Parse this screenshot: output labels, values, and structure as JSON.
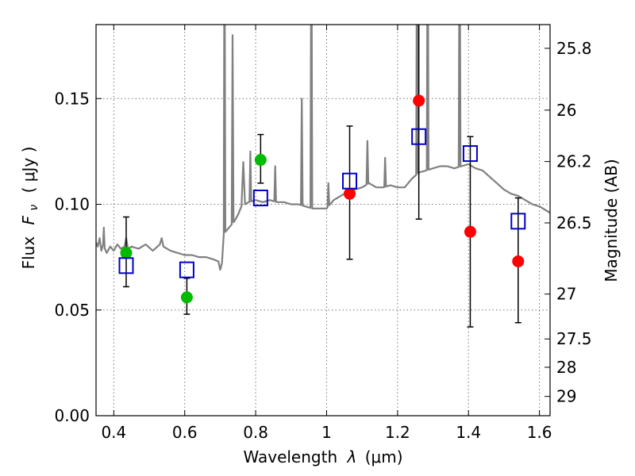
{
  "chart_data": {
    "type": "scatter",
    "title": "",
    "xlabel_text": "Wavelength",
    "xlabel_symbol": "λ",
    "xlabel_unit": "(μm)",
    "ylabel_text": "Flux",
    "ylabel_symbol": "F",
    "ylabel_symbol_sub": "ν",
    "ylabel_unit": "( μJy )",
    "y2label": "Magnitude (AB)",
    "xlim": [
      0.35,
      1.63
    ],
    "ylim": [
      0.0,
      0.185
    ],
    "grid": true,
    "x_ticks": [
      {
        "value": 0.4,
        "label": "0.4"
      },
      {
        "value": 0.6,
        "label": "0.6"
      },
      {
        "value": 0.8,
        "label": "0.8"
      },
      {
        "value": 1.0,
        "label": "1"
      },
      {
        "value": 1.2,
        "label": "1.2"
      },
      {
        "value": 1.4,
        "label": "1.4"
      },
      {
        "value": 1.6,
        "label": "1.6"
      }
    ],
    "y_ticks": [
      {
        "value": 0.0,
        "label": "0.00"
      },
      {
        "value": 0.05,
        "label": "0.05"
      },
      {
        "value": 0.1,
        "label": "0.10"
      },
      {
        "value": 0.15,
        "label": "0.15"
      }
    ],
    "y2_ticks": [
      {
        "mag": 25.8,
        "label": "25.8"
      },
      {
        "mag": 26.0,
        "label": "26"
      },
      {
        "mag": 26.2,
        "label": "26.2"
      },
      {
        "mag": 26.5,
        "label": "26.5"
      },
      {
        "mag": 27.0,
        "label": "27"
      },
      {
        "mag": 27.5,
        "label": "27.5"
      },
      {
        "mag": 28.0,
        "label": "28"
      },
      {
        "mag": 29.0,
        "label": "29"
      }
    ],
    "series": [
      {
        "marker": "filled-circle",
        "color": "#00bb00",
        "points": [
          {
            "x": 0.435,
            "y": 0.077
          },
          {
            "x": 0.606,
            "y": 0.056
          },
          {
            "x": 0.814,
            "y": 0.121
          }
        ]
      },
      {
        "marker": "filled-circle",
        "color": "#ff0000",
        "points": [
          {
            "x": 1.065,
            "y": 0.105
          },
          {
            "x": 1.26,
            "y": 0.149
          },
          {
            "x": 1.405,
            "y": 0.087
          },
          {
            "x": 1.54,
            "y": 0.073
          }
        ]
      },
      {
        "marker": "open-square",
        "color": "#0000cc",
        "points": [
          {
            "x": 0.435,
            "y": 0.071
          },
          {
            "x": 0.606,
            "y": 0.069
          },
          {
            "x": 0.814,
            "y": 0.103
          },
          {
            "x": 1.065,
            "y": 0.111
          },
          {
            "x": 1.26,
            "y": 0.132
          },
          {
            "x": 1.405,
            "y": 0.124
          },
          {
            "x": 1.54,
            "y": 0.092
          }
        ]
      }
    ],
    "error_bars": {
      "color": "#000000",
      "bars": [
        {
          "x": 0.435,
          "low": 0.061,
          "high": 0.094
        },
        {
          "x": 0.606,
          "low": 0.048,
          "high": 0.065
        },
        {
          "x": 0.814,
          "low": 0.11,
          "high": 0.133
        },
        {
          "x": 1.065,
          "low": 0.074,
          "high": 0.137
        },
        {
          "x": 1.26,
          "low": 0.093,
          "high": 0.19
        },
        {
          "x": 1.405,
          "low": 0.042,
          "high": 0.132
        },
        {
          "x": 1.54,
          "low": 0.044,
          "high": 0.103
        }
      ]
    },
    "spectrum": {
      "color": "#808080",
      "points": [
        [
          0.35,
          0.082
        ],
        [
          0.355,
          0.08
        ],
        [
          0.36,
          0.084
        ],
        [
          0.365,
          0.078
        ],
        [
          0.37,
          0.081
        ],
        [
          0.38,
          0.077
        ],
        [
          0.39,
          0.08
        ],
        [
          0.4,
          0.078
        ],
        [
          0.41,
          0.081
        ],
        [
          0.42,
          0.079
        ],
        [
          0.43,
          0.08
        ],
        [
          0.435,
          0.084
        ],
        [
          0.44,
          0.079
        ],
        [
          0.45,
          0.08
        ],
        [
          0.47,
          0.079
        ],
        [
          0.49,
          0.081
        ],
        [
          0.51,
          0.078
        ],
        [
          0.53,
          0.081
        ],
        [
          0.535,
          0.084
        ],
        [
          0.54,
          0.08
        ],
        [
          0.56,
          0.078
        ],
        [
          0.58,
          0.077
        ],
        [
          0.6,
          0.076
        ],
        [
          0.62,
          0.076
        ],
        [
          0.64,
          0.075
        ],
        [
          0.66,
          0.075
        ],
        [
          0.68,
          0.074
        ],
        [
          0.695,
          0.073
        ],
        [
          0.7,
          0.069
        ],
        [
          0.705,
          0.072
        ],
        [
          0.71,
          0.086
        ],
        [
          0.72,
          0.088
        ],
        [
          0.73,
          0.09
        ],
        [
          0.74,
          0.092
        ],
        [
          0.75,
          0.095
        ],
        [
          0.76,
          0.099
        ],
        [
          0.765,
          0.12
        ],
        [
          0.77,
          0.1
        ],
        [
          0.78,
          0.101
        ],
        [
          0.8,
          0.102
        ],
        [
          0.82,
          0.101
        ],
        [
          0.84,
          0.102
        ],
        [
          0.86,
          0.101
        ],
        [
          0.88,
          0.101
        ],
        [
          0.9,
          0.1
        ],
        [
          0.92,
          0.1
        ],
        [
          0.94,
          0.099
        ],
        [
          0.96,
          0.098
        ],
        [
          0.98,
          0.098
        ],
        [
          1.0,
          0.098
        ],
        [
          1.02,
          0.102
        ],
        [
          1.04,
          0.104
        ],
        [
          1.06,
          0.106
        ],
        [
          1.08,
          0.107
        ],
        [
          1.1,
          0.108
        ],
        [
          1.12,
          0.11
        ],
        [
          1.14,
          0.108
        ],
        [
          1.16,
          0.108
        ],
        [
          1.18,
          0.109
        ],
        [
          1.2,
          0.108
        ],
        [
          1.22,
          0.108
        ],
        [
          1.24,
          0.112
        ],
        [
          1.26,
          0.115
        ],
        [
          1.28,
          0.116
        ],
        [
          1.3,
          0.117
        ],
        [
          1.32,
          0.118
        ],
        [
          1.34,
          0.118
        ],
        [
          1.36,
          0.117
        ],
        [
          1.38,
          0.118
        ],
        [
          1.4,
          0.119
        ],
        [
          1.42,
          0.117
        ],
        [
          1.44,
          0.116
        ],
        [
          1.46,
          0.113
        ],
        [
          1.48,
          0.11
        ],
        [
          1.5,
          0.107
        ],
        [
          1.52,
          0.105
        ],
        [
          1.54,
          0.104
        ],
        [
          1.56,
          0.102
        ],
        [
          1.58,
          0.1
        ],
        [
          1.6,
          0.099
        ],
        [
          1.62,
          0.097
        ],
        [
          1.63,
          0.096
        ]
      ],
      "emission_lines": [
        {
          "x": 0.372,
          "peak": 0.089
        },
        {
          "x": 0.712,
          "peak": 0.25
        },
        {
          "x": 0.735,
          "peak": 0.18
        },
        {
          "x": 0.785,
          "peak": 0.125
        },
        {
          "x": 0.855,
          "peak": 0.118
        },
        {
          "x": 0.93,
          "peak": 0.15
        },
        {
          "x": 0.957,
          "peak": 0.25
        },
        {
          "x": 1.005,
          "peak": 0.11
        },
        {
          "x": 1.115,
          "peak": 0.13
        },
        {
          "x": 1.165,
          "peak": 0.122
        },
        {
          "x": 1.255,
          "peak": 0.25
        },
        {
          "x": 1.285,
          "peak": 0.25
        },
        {
          "x": 1.375,
          "peak": 0.25
        }
      ]
    }
  }
}
